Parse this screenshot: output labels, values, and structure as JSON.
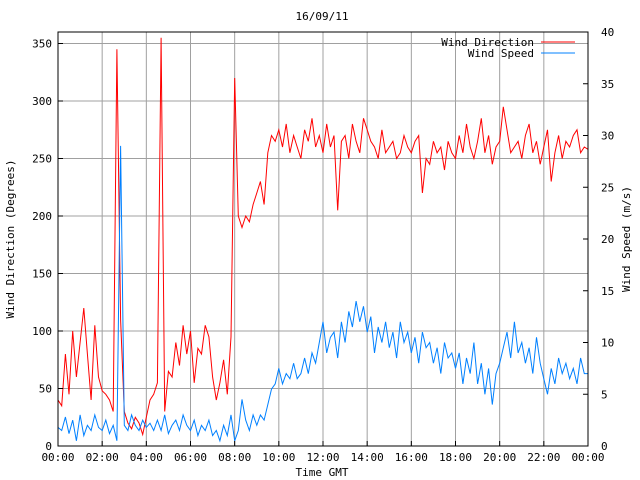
{
  "chart_data": {
    "type": "line",
    "title": "16/09/11",
    "xlabel": "Time GMT",
    "ylabel": "Wind Direction (Degrees)",
    "y2label": "Wind Speed (m/s)",
    "xlim_hours": [
      0,
      24
    ],
    "ylim": [
      0,
      360
    ],
    "y2lim": [
      0,
      40
    ],
    "x_ticks": [
      "00:00",
      "02:00",
      "04:00",
      "06:00",
      "08:00",
      "10:00",
      "12:00",
      "14:00",
      "16:00",
      "18:00",
      "20:00",
      "22:00",
      "00:00"
    ],
    "y_ticks": [
      0,
      50,
      100,
      150,
      200,
      250,
      300,
      350
    ],
    "y2_ticks": [
      0,
      5,
      10,
      15,
      20,
      25,
      30,
      35,
      40
    ],
    "grid": true,
    "legend_position": "top-right",
    "sample_step_minutes": 10,
    "series": [
      {
        "name": "Wind Direction",
        "axis": "left",
        "color": "#ff0000",
        "values": [
          40,
          35,
          80,
          45,
          100,
          60,
          90,
          120,
          80,
          40,
          105,
          60,
          48,
          45,
          40,
          30,
          345,
          110,
          30,
          20,
          15,
          25,
          20,
          10,
          25,
          40,
          45,
          55,
          355,
          30,
          65,
          60,
          90,
          70,
          105,
          80,
          100,
          55,
          85,
          80,
          105,
          95,
          60,
          40,
          55,
          75,
          45,
          95,
          320,
          200,
          190,
          200,
          195,
          210,
          220,
          230,
          210,
          255,
          270,
          265,
          275,
          260,
          280,
          255,
          270,
          260,
          250,
          275,
          265,
          285,
          260,
          270,
          255,
          280,
          260,
          270,
          205,
          265,
          270,
          250,
          280,
          265,
          255,
          285,
          275,
          265,
          260,
          250,
          275,
          255,
          260,
          265,
          250,
          255,
          270,
          260,
          255,
          265,
          270,
          220,
          250,
          245,
          265,
          255,
          260,
          240,
          265,
          255,
          250,
          270,
          255,
          280,
          260,
          250,
          265,
          285,
          255,
          270,
          245,
          260,
          265,
          295,
          275,
          255,
          260,
          265,
          250,
          270,
          280,
          255,
          265,
          245,
          260,
          275,
          230,
          255,
          270,
          250,
          265,
          260,
          270,
          275,
          255,
          260,
          258
        ]
      },
      {
        "name": "Wind Speed",
        "axis": "right",
        "color": "#0080ff",
        "values": [
          1.8,
          1.5,
          2.8,
          1.2,
          2.5,
          0.5,
          3,
          1,
          2,
          1.5,
          3,
          1.8,
          1.5,
          2.5,
          1.2,
          2,
          0.5,
          29,
          2,
          1.5,
          3,
          2,
          1.5,
          2.5,
          1.8,
          2.2,
          1.5,
          2.5,
          1.5,
          3,
          1.2,
          2,
          2.5,
          1.5,
          3,
          2,
          1.5,
          2.5,
          1,
          2,
          1.5,
          2.5,
          1,
          1.5,
          0.5,
          2,
          1,
          3,
          0.5,
          1.5,
          4.5,
          2.5,
          1.5,
          3,
          2,
          3,
          2.5,
          4,
          5.5,
          6,
          7.5,
          6,
          7,
          6.5,
          8,
          6.5,
          7,
          8.5,
          7,
          9,
          8,
          10,
          12,
          9,
          10.5,
          11,
          8.5,
          12,
          10,
          13,
          11.5,
          14,
          12,
          13.5,
          11,
          12.5,
          9,
          11.5,
          10,
          12,
          9.5,
          11,
          8.5,
          12,
          10,
          11,
          9,
          10.5,
          8,
          11,
          9.5,
          10,
          8,
          9.5,
          7,
          10,
          8.5,
          9,
          7.5,
          9,
          6,
          8.5,
          7,
          10,
          6,
          8,
          5,
          7.5,
          4,
          7,
          8,
          9.5,
          11,
          8.5,
          12,
          9,
          10,
          8,
          9.5,
          7,
          10.5,
          8,
          6.5,
          5,
          7.5,
          6,
          8.5,
          7,
          8,
          6.5,
          7.5,
          6,
          8.5,
          7,
          7
        ]
      }
    ]
  }
}
